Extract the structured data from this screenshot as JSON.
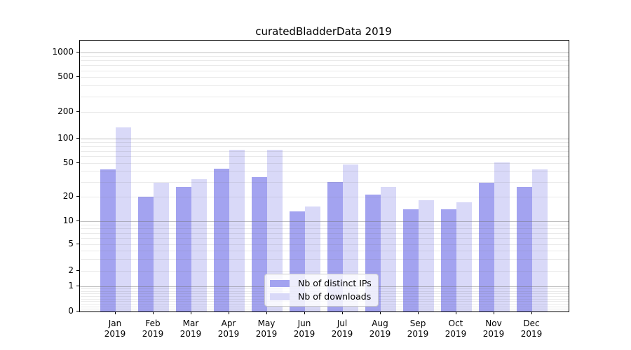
{
  "title": "curatedBladderData 2019",
  "chart_data": {
    "type": "bar",
    "title": "curatedBladderData 2019",
    "categories": [
      "Jan",
      "Feb",
      "Mar",
      "Apr",
      "May",
      "Jun",
      "Jul",
      "Aug",
      "Sep",
      "Oct",
      "Nov",
      "Dec"
    ],
    "category_year": "2019",
    "series": [
      {
        "name": "Nb of distinct IPs",
        "color": "#a3a3f0",
        "values": [
          42,
          20,
          26,
          43,
          34,
          13,
          30,
          21,
          14,
          14,
          29,
          26
        ]
      },
      {
        "name": "Nb of downloads",
        "color": "#d9d9f8",
        "values": [
          133,
          29,
          32,
          73,
          73,
          15,
          48,
          26,
          18,
          17,
          51,
          42
        ]
      }
    ],
    "yscale": "symlog",
    "y_ticks": [
      0,
      1,
      2,
      5,
      10,
      20,
      50,
      100,
      200,
      500,
      1000
    ],
    "ylim": [
      0,
      1400
    ],
    "xlabel": "",
    "ylabel": "",
    "grid": "on",
    "legend_position": "lower center"
  }
}
